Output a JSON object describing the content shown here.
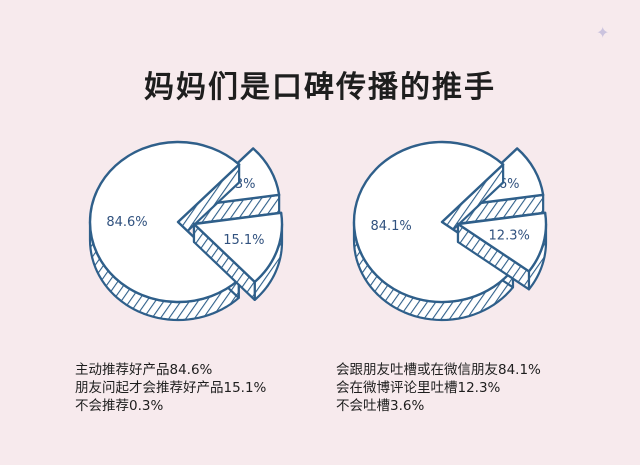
{
  "title": "妈妈们是口碑传播的推手",
  "colors": {
    "background": "#f7eaed",
    "outline": "#2f5f8a",
    "hatch": "#2f5f8a",
    "slice_fill": "#ffffff",
    "percent_text": "#31527f"
  },
  "chart_data": [
    {
      "type": "pie",
      "style": "3d-exploded-hatched",
      "slices": [
        {
          "label": "主动推荐好产品",
          "value": 84.6,
          "display": "84.6%"
        },
        {
          "label": "朋友问起才会推荐好产品",
          "value": 15.1,
          "display": "15.1%"
        },
        {
          "label": "不会推荐",
          "value": 0.3,
          "display": "0.3%"
        }
      ],
      "captions": [
        "主动推荐好产品84.6%",
        "朋友问起才会推荐好产品15.1%",
        "不会推荐0.3%"
      ]
    },
    {
      "type": "pie",
      "style": "3d-exploded-hatched",
      "slices": [
        {
          "label": "会跟朋友吐槽或在微信朋友",
          "value": 84.1,
          "display": "84.1%"
        },
        {
          "label": "会在微博评论里吐槽",
          "value": 12.3,
          "display": "12.3%"
        },
        {
          "label": "不会吐槽",
          "value": 3.6,
          "display": "3.6%"
        }
      ],
      "captions": [
        "会跟朋友吐槽或在微信朋友84.1%",
        "会在微博评论里吐槽12.3%",
        "不会吐槽3.6%"
      ]
    }
  ]
}
